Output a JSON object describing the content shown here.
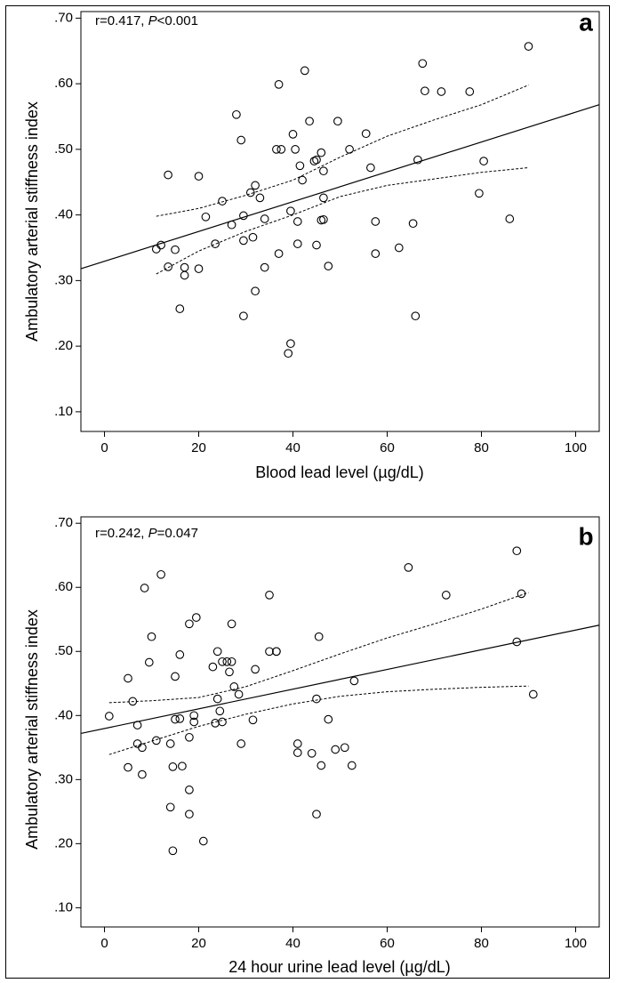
{
  "chart_data": [
    {
      "type": "scatter",
      "panel_label": "a",
      "annotation_prefix": "r=0.417, ",
      "annotation_p": "P",
      "annotation_suffix": "<0.001",
      "xlabel": "Blood lead level (µg/dL)",
      "ylabel": "Ambulatory arterial stiffness index",
      "xlim": [
        -5,
        105
      ],
      "ylim": [
        0.07,
        0.71
      ],
      "x_ticks": [
        0,
        20,
        40,
        60,
        80,
        100
      ],
      "x_tick_labels": [
        "0",
        "20",
        "40",
        "60",
        "80",
        "100"
      ],
      "y_ticks": [
        0.1,
        0.2,
        0.3,
        0.4,
        0.5,
        0.6,
        0.7
      ],
      "y_tick_labels": [
        ".10",
        ".20",
        ".30",
        ".40",
        ".50",
        ".60",
        ".70"
      ],
      "grid": false,
      "fit_line": [
        [
          -5,
          0.318
        ],
        [
          105,
          0.568
        ]
      ],
      "ci_upper": [
        [
          11,
          0.398
        ],
        [
          20,
          0.41
        ],
        [
          30,
          0.43
        ],
        [
          40,
          0.453
        ],
        [
          50,
          0.488
        ],
        [
          60,
          0.52
        ],
        [
          70,
          0.545
        ],
        [
          80,
          0.568
        ],
        [
          90,
          0.598
        ]
      ],
      "ci_lower": [
        [
          11,
          0.31
        ],
        [
          20,
          0.345
        ],
        [
          30,
          0.375
        ],
        [
          40,
          0.4
        ],
        [
          50,
          0.428
        ],
        [
          60,
          0.445
        ],
        [
          70,
          0.455
        ],
        [
          80,
          0.465
        ],
        [
          90,
          0.472
        ]
      ],
      "points": [
        [
          11,
          0.348
        ],
        [
          12,
          0.354
        ],
        [
          13.5,
          0.461
        ],
        [
          13.5,
          0.321
        ],
        [
          15,
          0.347
        ],
        [
          16,
          0.257
        ],
        [
          17,
          0.308
        ],
        [
          17,
          0.32
        ],
        [
          20,
          0.459
        ],
        [
          20,
          0.318
        ],
        [
          21.5,
          0.397
        ],
        [
          23.5,
          0.356
        ],
        [
          25,
          0.421
        ],
        [
          27,
          0.385
        ],
        [
          28,
          0.553
        ],
        [
          29,
          0.514
        ],
        [
          29.5,
          0.399
        ],
        [
          29.5,
          0.361
        ],
        [
          29.5,
          0.246
        ],
        [
          31,
          0.434
        ],
        [
          31.5,
          0.366
        ],
        [
          32,
          0.445
        ],
        [
          32,
          0.284
        ],
        [
          33,
          0.426
        ],
        [
          34,
          0.394
        ],
        [
          34,
          0.32
        ],
        [
          36.5,
          0.5
        ],
        [
          37,
          0.599
        ],
        [
          37,
          0.341
        ],
        [
          37.5,
          0.5
        ],
        [
          39,
          0.189
        ],
        [
          39.5,
          0.204
        ],
        [
          39.5,
          0.406
        ],
        [
          40,
          0.523
        ],
        [
          40.5,
          0.5
        ],
        [
          41,
          0.39
        ],
        [
          41,
          0.356
        ],
        [
          41.5,
          0.475
        ],
        [
          42,
          0.453
        ],
        [
          42.5,
          0.62
        ],
        [
          43.5,
          0.543
        ],
        [
          44.5,
          0.482
        ],
        [
          45,
          0.484
        ],
        [
          45,
          0.354
        ],
        [
          46,
          0.495
        ],
        [
          46,
          0.392
        ],
        [
          46.5,
          0.393
        ],
        [
          46.5,
          0.467
        ],
        [
          46.5,
          0.426
        ],
        [
          47.5,
          0.322
        ],
        [
          49.5,
          0.543
        ],
        [
          52,
          0.5
        ],
        [
          55.5,
          0.524
        ],
        [
          56.5,
          0.472
        ],
        [
          57.5,
          0.39
        ],
        [
          57.5,
          0.341
        ],
        [
          62.5,
          0.35
        ],
        [
          65.5,
          0.387
        ],
        [
          66,
          0.246
        ],
        [
          66.5,
          0.484
        ],
        [
          67.5,
          0.631
        ],
        [
          68,
          0.589
        ],
        [
          71.5,
          0.588
        ],
        [
          77.5,
          0.588
        ],
        [
          79.5,
          0.433
        ],
        [
          80.5,
          0.482
        ],
        [
          86,
          0.394
        ],
        [
          90,
          0.657
        ]
      ]
    },
    {
      "type": "scatter",
      "panel_label": "b",
      "annotation_prefix": "r=0.242, ",
      "annotation_p": "P",
      "annotation_suffix": "=0.047",
      "xlabel": "24 hour urine lead level (µg/dL)",
      "ylabel": "Ambulatory arterial stiffness index",
      "xlim": [
        -5,
        105
      ],
      "ylim": [
        0.07,
        0.71
      ],
      "x_ticks": [
        0,
        20,
        40,
        60,
        80,
        100
      ],
      "x_tick_labels": [
        "0",
        "20",
        "40",
        "60",
        "80",
        "100"
      ],
      "y_ticks": [
        0.1,
        0.2,
        0.3,
        0.4,
        0.5,
        0.6,
        0.7
      ],
      "y_tick_labels": [
        ".10",
        ".20",
        ".30",
        ".40",
        ".50",
        ".60",
        ".70"
      ],
      "grid": false,
      "fit_line": [
        [
          -5,
          0.372
        ],
        [
          105,
          0.541
        ]
      ],
      "ci_upper": [
        [
          1,
          0.42
        ],
        [
          10,
          0.423
        ],
        [
          20,
          0.428
        ],
        [
          30,
          0.445
        ],
        [
          40,
          0.47
        ],
        [
          50,
          0.496
        ],
        [
          60,
          0.521
        ],
        [
          70,
          0.543
        ],
        [
          80,
          0.566
        ],
        [
          90,
          0.592
        ]
      ],
      "ci_lower": [
        [
          1,
          0.339
        ],
        [
          10,
          0.36
        ],
        [
          20,
          0.383
        ],
        [
          30,
          0.402
        ],
        [
          40,
          0.418
        ],
        [
          50,
          0.43
        ],
        [
          60,
          0.437
        ],
        [
          70,
          0.441
        ],
        [
          80,
          0.444
        ],
        [
          90,
          0.446
        ]
      ],
      "points": [
        [
          1,
          0.399
        ],
        [
          5,
          0.458
        ],
        [
          5,
          0.319
        ],
        [
          6,
          0.422
        ],
        [
          7,
          0.385
        ],
        [
          7,
          0.356
        ],
        [
          8,
          0.35
        ],
        [
          8,
          0.308
        ],
        [
          8.5,
          0.599
        ],
        [
          9.5,
          0.483
        ],
        [
          10,
          0.523
        ],
        [
          11,
          0.361
        ],
        [
          12,
          0.62
        ],
        [
          14,
          0.356
        ],
        [
          14,
          0.257
        ],
        [
          14.5,
          0.32
        ],
        [
          14.5,
          0.189
        ],
        [
          15,
          0.461
        ],
        [
          15,
          0.394
        ],
        [
          16,
          0.495
        ],
        [
          16,
          0.395
        ],
        [
          16.5,
          0.321
        ],
        [
          18,
          0.543
        ],
        [
          18,
          0.366
        ],
        [
          18,
          0.284
        ],
        [
          18,
          0.246
        ],
        [
          19,
          0.4
        ],
        [
          19,
          0.39
        ],
        [
          19.5,
          0.553
        ],
        [
          21,
          0.204
        ],
        [
          23,
          0.476
        ],
        [
          23.5,
          0.388
        ],
        [
          24,
          0.5
        ],
        [
          24,
          0.426
        ],
        [
          24.5,
          0.407
        ],
        [
          25,
          0.484
        ],
        [
          25,
          0.39
        ],
        [
          26,
          0.484
        ],
        [
          26.5,
          0.468
        ],
        [
          27,
          0.484
        ],
        [
          27,
          0.543
        ],
        [
          27.5,
          0.445
        ],
        [
          28.5,
          0.433
        ],
        [
          29,
          0.356
        ],
        [
          31.5,
          0.393
        ],
        [
          32,
          0.472
        ],
        [
          35,
          0.588
        ],
        [
          35,
          0.5
        ],
        [
          36.5,
          0.5
        ],
        [
          36.5,
          0.5
        ],
        [
          41,
          0.356
        ],
        [
          41,
          0.342
        ],
        [
          44,
          0.341
        ],
        [
          45,
          0.426
        ],
        [
          45,
          0.246
        ],
        [
          45.5,
          0.523
        ],
        [
          46,
          0.322
        ],
        [
          47.5,
          0.394
        ],
        [
          49,
          0.347
        ],
        [
          51,
          0.35
        ],
        [
          52.5,
          0.322
        ],
        [
          53,
          0.454
        ],
        [
          64.5,
          0.631
        ],
        [
          72.5,
          0.588
        ],
        [
          87.5,
          0.657
        ],
        [
          87.5,
          0.515
        ],
        [
          88.5,
          0.59
        ],
        [
          91,
          0.433
        ]
      ]
    }
  ]
}
